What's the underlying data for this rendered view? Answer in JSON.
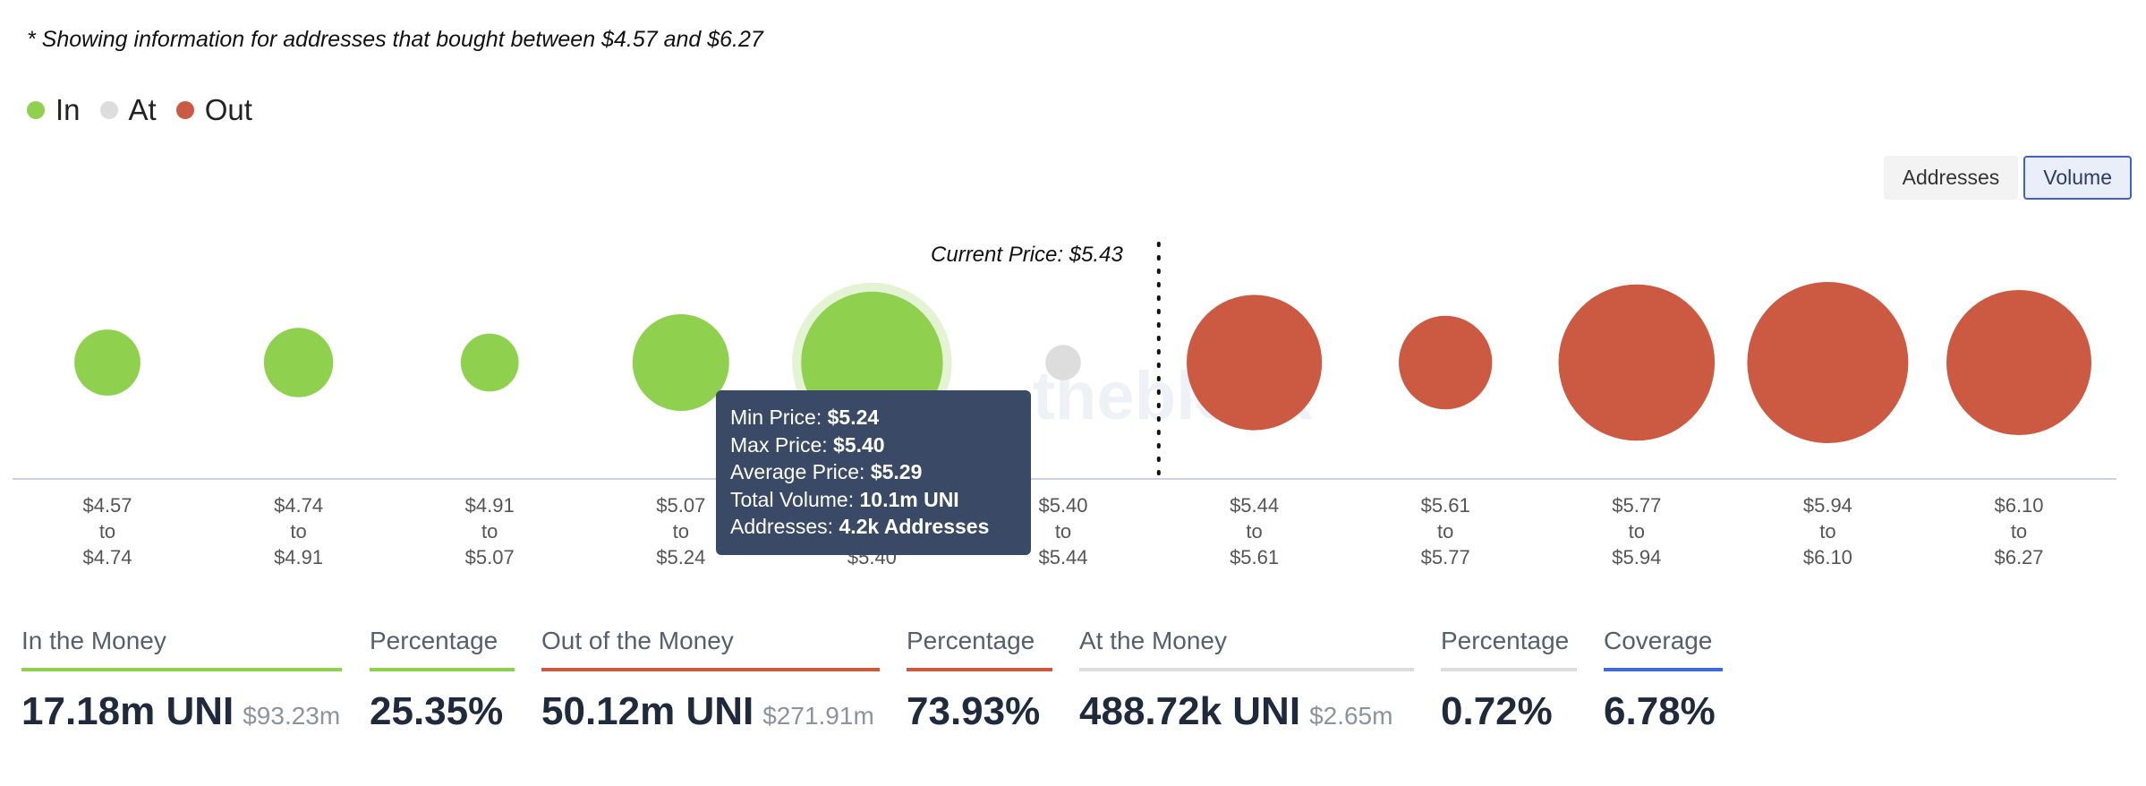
{
  "note": "* Showing information for addresses that bought between $4.57 and $6.27",
  "legend": [
    {
      "label": "In",
      "color": "#8fd14f"
    },
    {
      "label": "At",
      "color": "#dddddd"
    },
    {
      "label": "Out",
      "color": "#cc5a42"
    }
  ],
  "toggle": {
    "addresses": "Addresses",
    "volume": "Volume",
    "active": "volume"
  },
  "chart_data": {
    "type": "bubble",
    "metric": "Volume",
    "current_price_label": "Current Price: $5.43",
    "watermark": "theblock",
    "colors": {
      "in": "#8fd14f",
      "at": "#dddddd",
      "out": "#cc5a42"
    },
    "bins": [
      {
        "from": "$4.57",
        "to": "$4.74",
        "status": "in",
        "size": 0.41
      },
      {
        "from": "$4.74",
        "to": "$4.91",
        "status": "in",
        "size": 0.43
      },
      {
        "from": "$4.91",
        "to": "$5.07",
        "status": "in",
        "size": 0.36
      },
      {
        "from": "$5.07",
        "to": "$5.24",
        "status": "in",
        "size": 0.6
      },
      {
        "from": "$5.24",
        "to": "$5.40",
        "status": "in",
        "size": 0.88,
        "highlighted": true
      },
      {
        "from": "$5.40",
        "to": "$5.44",
        "status": "at",
        "size": 0.22
      },
      {
        "from": "$5.44",
        "to": "$5.61",
        "status": "out",
        "size": 0.84
      },
      {
        "from": "$5.61",
        "to": "$5.77",
        "status": "out",
        "size": 0.58
      },
      {
        "from": "$5.77",
        "to": "$5.94",
        "status": "out",
        "size": 0.97
      },
      {
        "from": "$5.94",
        "to": "$6.10",
        "status": "out",
        "size": 1.0
      },
      {
        "from": "$6.10",
        "to": "$6.27",
        "status": "out",
        "size": 0.9
      }
    ],
    "connector": "to",
    "current_price_after_bin": 5
  },
  "tooltip": {
    "rows": [
      {
        "label": "Min Price:",
        "value": "$5.24"
      },
      {
        "label": "Max Price:",
        "value": "$5.40"
      },
      {
        "label": "Average Price:",
        "value": "$5.29"
      },
      {
        "label": "Total Volume:",
        "value": "10.1m UNI"
      },
      {
        "label": "Addresses:",
        "value": "4.2k Addresses"
      }
    ]
  },
  "metrics": [
    {
      "label": "In the Money",
      "value": "17.18m UNI",
      "sub": "$93.23m",
      "color": "#8fd14f"
    },
    {
      "label": "Percentage",
      "value": "25.35%",
      "sub": "",
      "color": "#8fd14f"
    },
    {
      "label": "Out of the Money",
      "value": "50.12m UNI",
      "sub": "$271.91m",
      "color": "#cc5a42"
    },
    {
      "label": "Percentage",
      "value": "73.93%",
      "sub": "",
      "color": "#cc5a42"
    },
    {
      "label": "At the Money",
      "value": "488.72k UNI",
      "sub": "$2.65m",
      "color": "#dddddd"
    },
    {
      "label": "Percentage",
      "value": "0.72%",
      "sub": "",
      "color": "#dddddd"
    },
    {
      "label": "Coverage",
      "value": "6.78%",
      "sub": "",
      "color": "#3f6ad8"
    }
  ]
}
